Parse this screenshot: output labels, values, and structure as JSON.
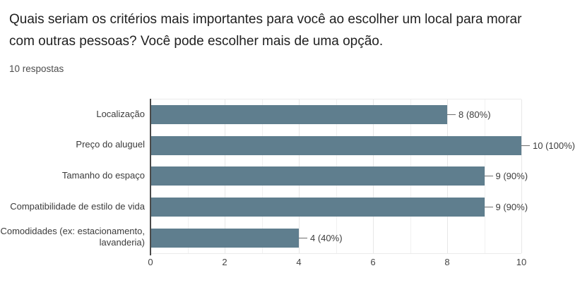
{
  "header": {
    "title": "Quais seriam os critérios mais importantes para você ao escolher um local para morar com outras pessoas? Você pode escolher mais de uma opção.",
    "responses_count": "10 respostas"
  },
  "chart_data": {
    "type": "bar",
    "orientation": "horizontal",
    "title": "Quais seriam os critérios mais importantes para você ao escolher um local para morar com outras pessoas? Você pode escolher mais de uma opção.",
    "subtitle": "10 respostas",
    "categories": [
      "Localização",
      "Preço do aluguel",
      "Tamanho do espaço",
      "Compatibilidade de estilo de vida",
      "Comodidades (ex: estacionamento, lavanderia)"
    ],
    "values": [
      8,
      10,
      9,
      9,
      4
    ],
    "value_labels": [
      "8 (80%)",
      "10 (100%)",
      "9 (90%)",
      "9 (90%)",
      "4 (40%)"
    ],
    "x_ticks": [
      0,
      2,
      4,
      6,
      8,
      10
    ],
    "xlim": [
      0,
      10
    ],
    "total_responses": 10,
    "bar_color": "#5f7e8e",
    "grid": true,
    "legend": "none"
  }
}
